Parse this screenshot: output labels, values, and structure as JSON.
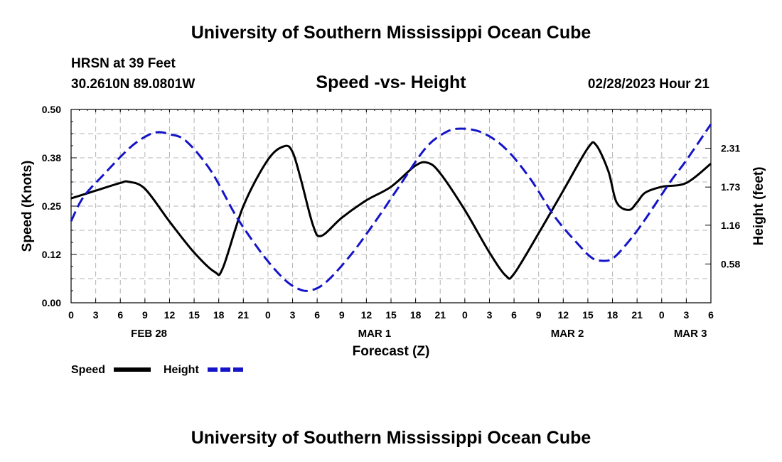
{
  "chart_data": {
    "type": "line",
    "title": "University of Southern Mississippi Ocean Cube",
    "footer_title": "University of Southern Mississippi Ocean Cube",
    "station": "HRSN at 39 Feet",
    "location": "30.2610N  89.0801W",
    "subtitle": "Speed -vs- Height",
    "datetime": "02/28/2023 Hour 21",
    "xlabel": "Forecast (Z)",
    "ylabel_left": "Speed (Knots)",
    "ylabel_right": "Height (feet)",
    "x_range_hours": [
      0,
      78
    ],
    "ylim_left": [
      0,
      0.5
    ],
    "ylim_right": [
      0.0,
      2.89
    ],
    "x_tick_labels": [
      "0",
      "3",
      "6",
      "9",
      "12",
      "15",
      "18",
      "21",
      "0",
      "3",
      "6",
      "9",
      "12",
      "15",
      "18",
      "21",
      "0",
      "3",
      "6",
      "9",
      "12",
      "15",
      "18",
      "21",
      "0",
      "3",
      "6"
    ],
    "date_labels": [
      {
        "label": "FEB 28",
        "hour": 9.5
      },
      {
        "label": "MAR 1",
        "hour": 37
      },
      {
        "label": "MAR 2",
        "hour": 60.5
      },
      {
        "label": "MAR 3",
        "hour": 75.5
      }
    ],
    "y_left_ticks": [
      "0.00",
      "0.12",
      "0.25",
      "0.38",
      "0.50"
    ],
    "y_left_tick_values": [
      0,
      0.125,
      0.25,
      0.375,
      0.5
    ],
    "y_right_ticks": [
      "0.58",
      "1.16",
      "1.73",
      "2.31"
    ],
    "y_right_tick_values": [
      0.58,
      1.16,
      1.73,
      2.31
    ],
    "grid": true,
    "series": [
      {
        "name": "Speed",
        "axis": "left",
        "color": "#000000",
        "style": "solid",
        "x": [
          0,
          3,
          6,
          7,
          9,
          12,
          15,
          17.5,
          18.5,
          21,
          24,
          26,
          27,
          28,
          29.5,
          30.5,
          33,
          36,
          39,
          42,
          43.5,
          45,
          48,
          51,
          53,
          54,
          57,
          60,
          63,
          64,
          65.5,
          66.5,
          68,
          69,
          70,
          72,
          75,
          78
        ],
        "values": [
          0.27,
          0.29,
          0.31,
          0.313,
          0.295,
          0.21,
          0.13,
          0.08,
          0.09,
          0.25,
          0.37,
          0.405,
          0.39,
          0.32,
          0.2,
          0.173,
          0.22,
          0.265,
          0.3,
          0.355,
          0.362,
          0.335,
          0.24,
          0.13,
          0.07,
          0.075,
          0.18,
          0.29,
          0.4,
          0.408,
          0.34,
          0.26,
          0.24,
          0.26,
          0.285,
          0.3,
          0.31,
          0.36
        ]
      },
      {
        "name": "Height",
        "axis": "right",
        "color": "#1414c8",
        "style": "dashed",
        "x": [
          0,
          1.5,
          4,
          7,
          9,
          10.5,
          12,
          14,
          17,
          20,
          22,
          24,
          26,
          27.5,
          29,
          31,
          34,
          37,
          40,
          43,
          45,
          47,
          50,
          53,
          56,
          59,
          62,
          63.5,
          64.5,
          66,
          68,
          70,
          73,
          75,
          78
        ],
        "values": [
          1.22,
          1.58,
          1.92,
          2.3,
          2.48,
          2.55,
          2.52,
          2.42,
          1.98,
          1.32,
          0.95,
          0.62,
          0.35,
          0.22,
          0.18,
          0.3,
          0.7,
          1.2,
          1.74,
          2.28,
          2.5,
          2.6,
          2.55,
          2.3,
          1.85,
          1.28,
          0.85,
          0.67,
          0.63,
          0.66,
          0.92,
          1.25,
          1.8,
          2.13,
          2.67
        ]
      }
    ],
    "legend": [
      {
        "name": "Speed",
        "color": "#000000",
        "style": "solid"
      },
      {
        "name": "Height",
        "color": "#1414c8",
        "style": "dashed"
      }
    ]
  }
}
